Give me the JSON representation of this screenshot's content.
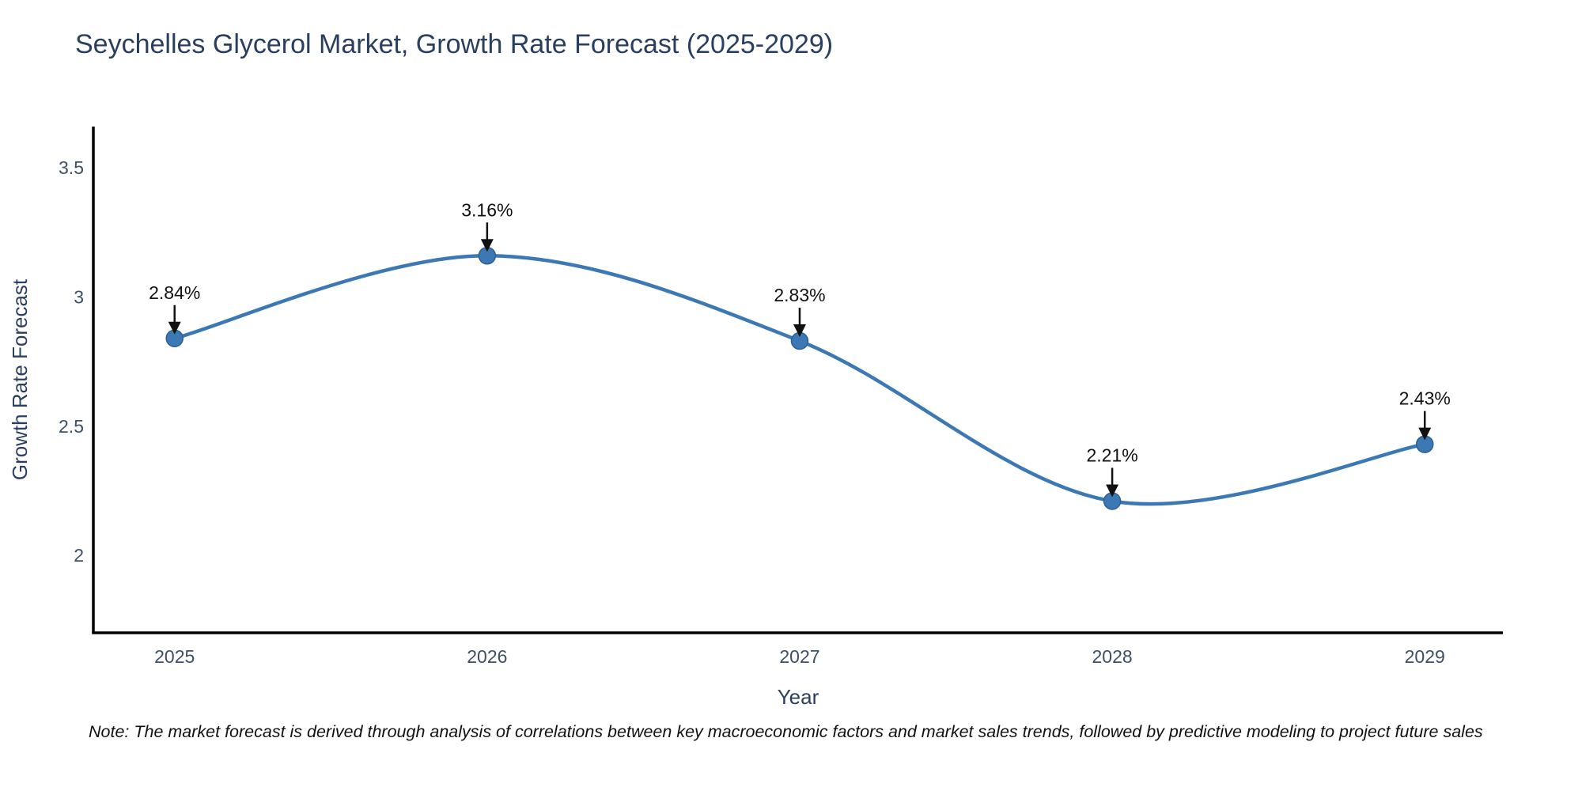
{
  "title": "Seychelles Glycerol Market, Growth Rate Forecast (2025-2029)",
  "note": "Note: The market forecast is derived through analysis of correlations between key macroeconomic factors and market sales trends, followed by predictive modeling to project future sales",
  "chart_data": {
    "type": "line",
    "title": "Seychelles Glycerol Market, Growth Rate Forecast (2025-2029)",
    "x": [
      2025,
      2026,
      2027,
      2028,
      2029
    ],
    "series": [
      {
        "name": "Growth Rate Forecast",
        "values": [
          2.84,
          3.16,
          2.83,
          2.21,
          2.43
        ]
      }
    ],
    "point_labels": [
      "2.84%",
      "3.16%",
      "2.83%",
      "2.21%",
      "2.43%"
    ],
    "xlabel": "Year",
    "ylabel": "Growth Rate Forecast",
    "ytick_values": [
      3.5,
      3,
      2.5,
      2
    ],
    "ytick_labels": [
      "3.5",
      "3",
      "2.5",
      "2"
    ],
    "xtick_labels": [
      "2025",
      "2026",
      "2027",
      "2028",
      "2029"
    ],
    "ylim": [
      1.7,
      3.66
    ],
    "xlim": [
      2024.74,
      2029.25
    ],
    "grid": false,
    "legend_position": "none",
    "line_shape": "spline",
    "colors": {
      "line": "#3c79b4",
      "marker": "#3c79b4",
      "marker_edge": "#2e5f8f",
      "annotation": "#111111",
      "axis": "#000000",
      "tick_text": "#3f4f66",
      "title_text": "#2a3f5f"
    }
  }
}
